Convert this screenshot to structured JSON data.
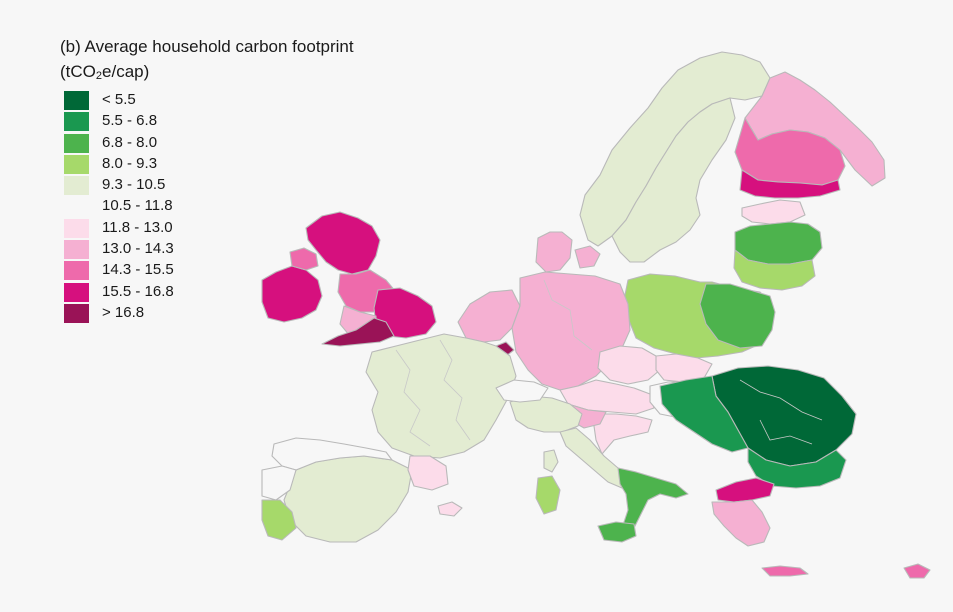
{
  "title_prefix": "(b) Average household carbon footprint",
  "unit": {
    "open": "(tCO",
    "sub": "2",
    "close": "e/cap)"
  },
  "legend": [
    {
      "label": "< 5.5",
      "color": "#006837"
    },
    {
      "label": "5.5 - 6.8",
      "color": "#1a9850"
    },
    {
      "label": "6.8 - 8.0",
      "color": "#4db34d"
    },
    {
      "label": "8.0 - 9.3",
      "color": "#a6d96a"
    },
    {
      "label": "9.3 - 10.5",
      "color": "#e3ecd2"
    },
    {
      "label": "10.5 - 11.8",
      "color": "#f7f7f7"
    },
    {
      "label": "11.8 - 13.0",
      "color": "#fcdcea"
    },
    {
      "label": "13.0 - 14.3",
      "color": "#f5b0d2"
    },
    {
      "label": "14.3 - 15.5",
      "color": "#ee6aab"
    },
    {
      "label": "15.5 - 16.8",
      "color": "#d6107e"
    },
    {
      "label": "> 16.8",
      "color": "#9a1357"
    }
  ],
  "regions": [
    {
      "name": "Norway",
      "class": 4
    },
    {
      "name": "Sweden",
      "class": 4
    },
    {
      "name": "Finland North",
      "class": 7
    },
    {
      "name": "Finland Central",
      "class": 8
    },
    {
      "name": "Finland South",
      "class": 9
    },
    {
      "name": "Estonia",
      "class": 6
    },
    {
      "name": "Latvia",
      "class": 2
    },
    {
      "name": "Lithuania",
      "class": 3
    },
    {
      "name": "Poland",
      "class": 3
    },
    {
      "name": "Poland East",
      "class": 2
    },
    {
      "name": "Denmark",
      "class": 7
    },
    {
      "name": "Ireland",
      "class": 9
    },
    {
      "name": "Northern Ireland",
      "class": 8
    },
    {
      "name": "Scotland",
      "class": 9
    },
    {
      "name": "England North",
      "class": 8
    },
    {
      "name": "England South",
      "class": 9
    },
    {
      "name": "Wales",
      "class": 7
    },
    {
      "name": "South West England",
      "class": 10
    },
    {
      "name": "Benelux",
      "class": 7
    },
    {
      "name": "Luxembourg",
      "class": 10
    },
    {
      "name": "Germany",
      "class": 7
    },
    {
      "name": "Czechia",
      "class": 6
    },
    {
      "name": "Slovakia",
      "class": 6
    },
    {
      "name": "Austria",
      "class": 6
    },
    {
      "name": "Hungary",
      "class": 5
    },
    {
      "name": "Romania",
      "class": 0
    },
    {
      "name": "Romania West",
      "class": 1
    },
    {
      "name": "Bulgaria",
      "class": 1
    },
    {
      "name": "Croatia",
      "class": 6
    },
    {
      "name": "Slovenia",
      "class": 7
    },
    {
      "name": "France",
      "class": 4
    },
    {
      "name": "Spain",
      "class": 4
    },
    {
      "name": "Spain North",
      "class": 5
    },
    {
      "name": "Portugal North",
      "class": 5
    },
    {
      "name": "Portugal South",
      "class": 3
    },
    {
      "name": "Catalonia",
      "class": 6
    },
    {
      "name": "Italy North",
      "class": 4
    },
    {
      "name": "Italy Central",
      "class": 4
    },
    {
      "name": "Italy South",
      "class": 2
    },
    {
      "name": "Sicily",
      "class": 2
    },
    {
      "name": "Sardinia",
      "class": 3
    },
    {
      "name": "Corsica",
      "class": 4
    },
    {
      "name": "Greece North",
      "class": 9
    },
    {
      "name": "Greece",
      "class": 7
    },
    {
      "name": "Crete",
      "class": 8
    },
    {
      "name": "Cyprus",
      "class": 8
    },
    {
      "name": "Balearics",
      "class": 6
    },
    {
      "name": "Switzerland",
      "class": 5
    }
  ]
}
